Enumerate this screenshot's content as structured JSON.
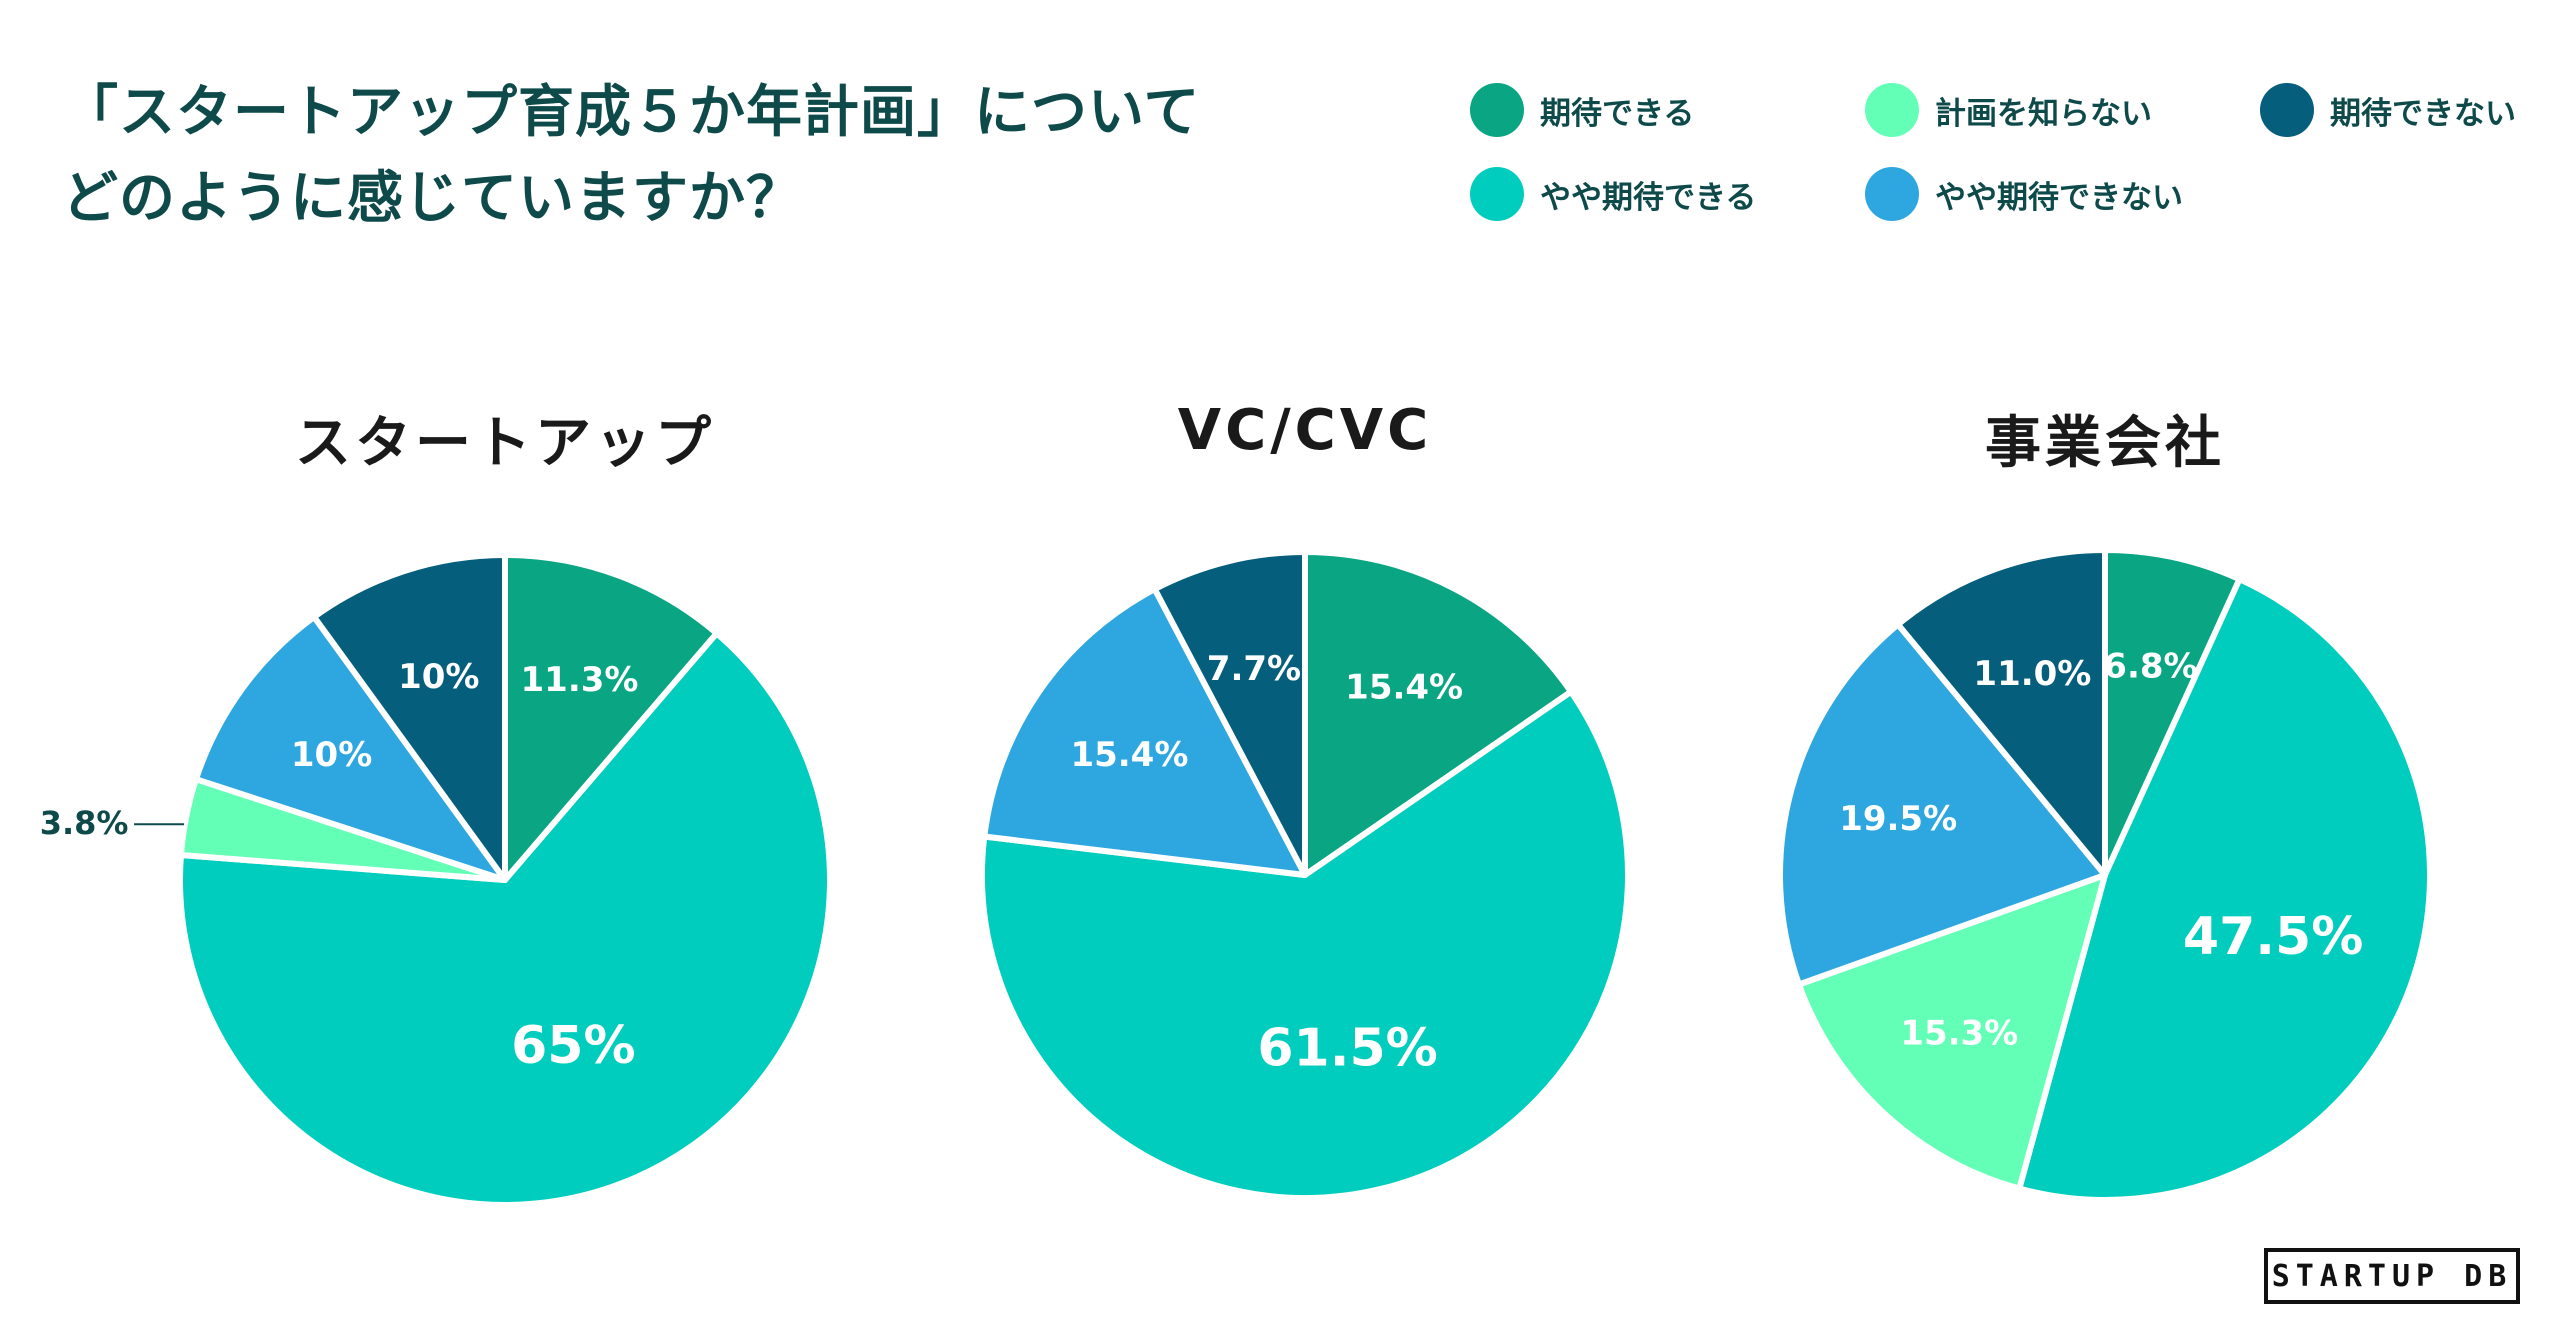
{
  "title_lines": [
    "「スタートアップ育成５か年計画」について",
    "どのように感じていますか？"
  ],
  "legend": [
    {
      "label": "期待できる",
      "color": "#0aa582"
    },
    {
      "label": "計画を知らない",
      "color": "#63ffb6"
    },
    {
      "label": "期待できない",
      "color": "#045e7c"
    },
    {
      "label": "やや期待できる",
      "color": "#00cdbd"
    },
    {
      "label": "やや期待できない",
      "color": "#2ea7e0"
    }
  ],
  "logo_text": "STARTUP DB",
  "chart_data": [
    {
      "type": "pie",
      "title": "スタートアップ",
      "slices": [
        {
          "category": "期待できる",
          "value": 11.3,
          "label": "11.3%"
        },
        {
          "category": "やや期待できる",
          "value": 65,
          "label": "65%"
        },
        {
          "category": "計画を知らない",
          "value": 3.8,
          "label": "3.8%"
        },
        {
          "category": "やや期待できない",
          "value": 10,
          "label": "10%"
        },
        {
          "category": "期待できない",
          "value": 10,
          "label": "10%"
        }
      ]
    },
    {
      "type": "pie",
      "title": "VC/CVC",
      "slices": [
        {
          "category": "期待できる",
          "value": 15.4,
          "label": "15.4%"
        },
        {
          "category": "やや期待できる",
          "value": 61.5,
          "label": "61.5%"
        },
        {
          "category": "やや期待できない",
          "value": 15.4,
          "label": "15.4%"
        },
        {
          "category": "期待できない",
          "value": 7.7,
          "label": "7.7%"
        }
      ]
    },
    {
      "type": "pie",
      "title": "事業会社",
      "slices": [
        {
          "category": "期待できる",
          "value": 6.8,
          "label": "6.8%"
        },
        {
          "category": "やや期待できる",
          "value": 47.5,
          "label": "47.5%"
        },
        {
          "category": "計画を知らない",
          "value": 15.3,
          "label": "15.3%"
        },
        {
          "category": "やや期待できない",
          "value": 19.5,
          "label": "19.5%"
        },
        {
          "category": "期待できない",
          "value": 11.0,
          "label": "11.0%"
        }
      ]
    }
  ]
}
